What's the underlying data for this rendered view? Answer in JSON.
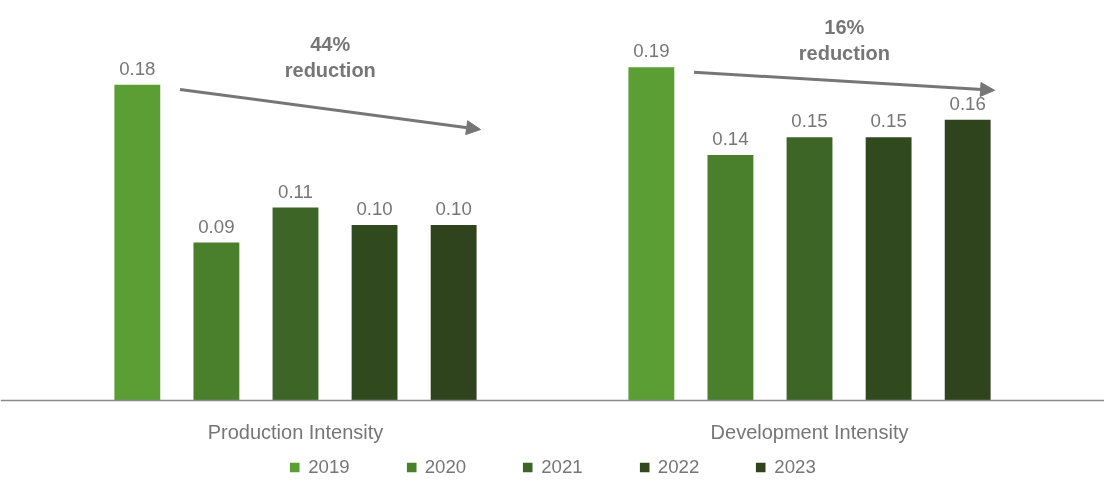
{
  "chart_data": {
    "type": "bar",
    "categories": [
      "Production Intensity",
      "Development Intensity"
    ],
    "series": [
      {
        "name": "2019",
        "color": "#5a9e34",
        "values": [
          0.18,
          0.19
        ],
        "value_labels": [
          "0.18",
          "0.19"
        ]
      },
      {
        "name": "2020",
        "color": "#4a7f2c",
        "values": [
          0.09,
          0.14
        ],
        "value_labels": [
          "0.09",
          "0.14"
        ]
      },
      {
        "name": "2021",
        "color": "#3d6626",
        "values": [
          0.11,
          0.15
        ],
        "value_labels": [
          "0.11",
          "0.15"
        ]
      },
      {
        "name": "2022",
        "color": "#304a1e",
        "values": [
          0.1,
          0.15
        ],
        "value_labels": [
          "0.10",
          "0.15"
        ]
      },
      {
        "name": "2023",
        "color": "#2f431d",
        "values": [
          0.1,
          0.16
        ],
        "value_labels": [
          "0.10",
          "0.16"
        ]
      }
    ],
    "legend": "bottom",
    "annotations": [
      "44%\nreduction",
      "16%\nreduction"
    ]
  }
}
